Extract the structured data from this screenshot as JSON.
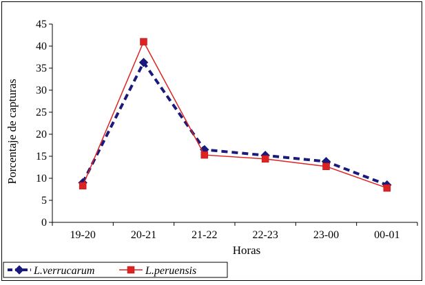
{
  "chart_data": {
    "type": "line",
    "title": "",
    "xlabel": "Horas",
    "ylabel": "Porcentaje de capturas",
    "ylim": [
      0,
      45
    ],
    "yticks": [
      0,
      5,
      10,
      15,
      20,
      25,
      30,
      35,
      40,
      45
    ],
    "categories": [
      "19-20",
      "20-21",
      "21-22",
      "22-23",
      "23-00",
      "00-01"
    ],
    "grid": false,
    "legend_position": "bottom-left",
    "series": [
      {
        "name": "L.verrucarum",
        "color": "#1a1a7a",
        "line_style": "dashed",
        "marker": "diamond",
        "values": [
          9,
          36.3,
          16.5,
          15.2,
          13.8,
          8.5
        ]
      },
      {
        "name": "L.peruensis",
        "color": "#dd2222",
        "line_style": "solid",
        "marker": "square",
        "values": [
          8.3,
          41,
          15.3,
          14.4,
          12.7,
          7.8
        ]
      }
    ]
  }
}
